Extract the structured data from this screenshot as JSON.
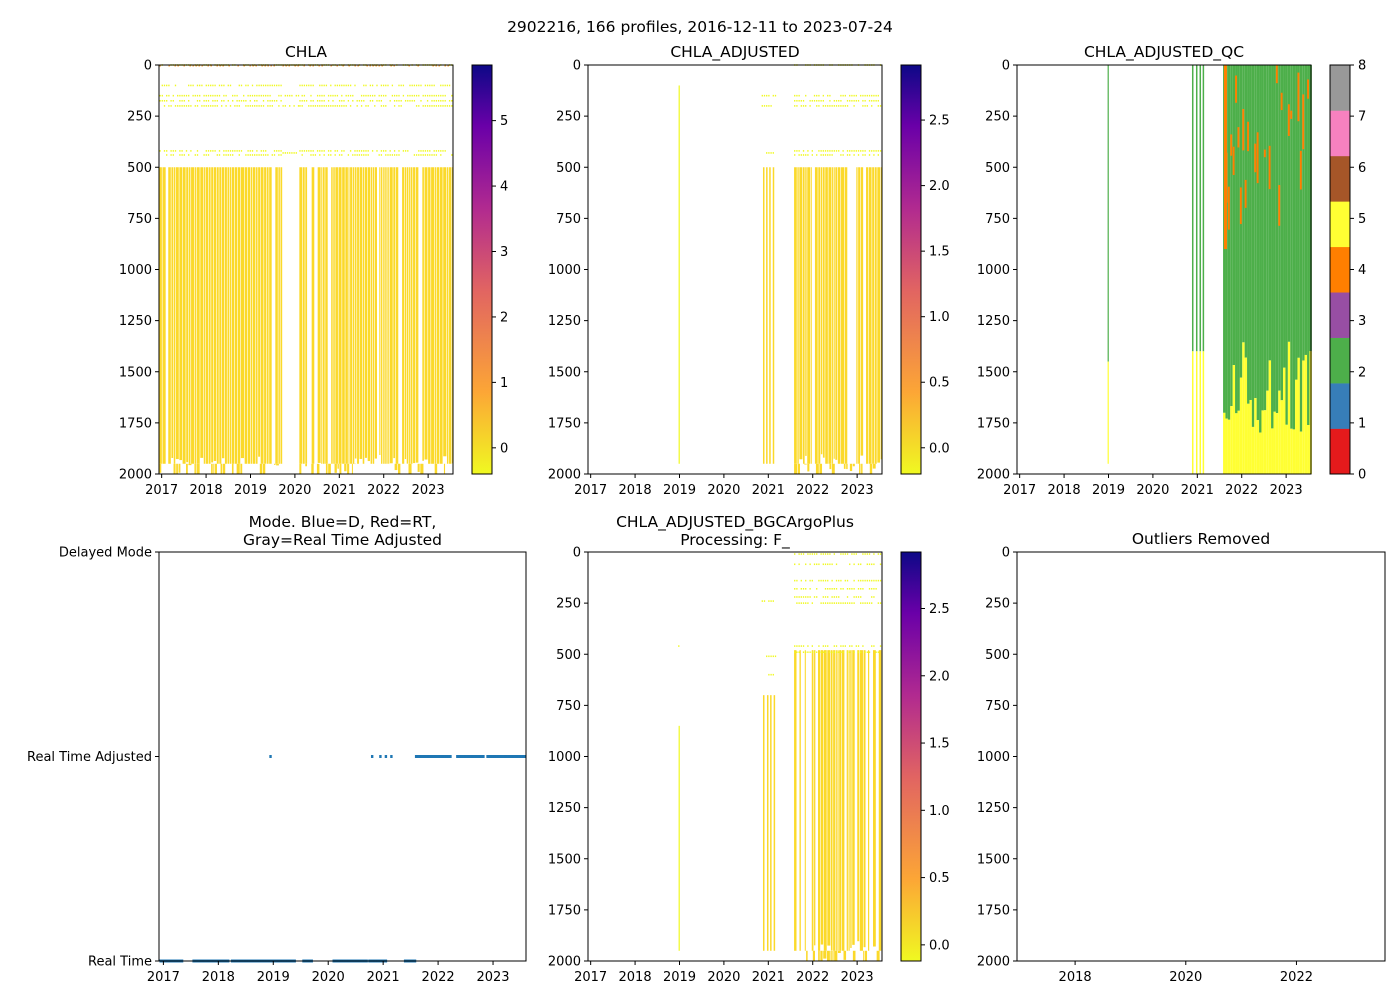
{
  "figure": {
    "title": "2902216, 166 profiles, 2016-12-11 to 2023-07-24"
  },
  "colors": {
    "chla_fill": "#fbd92a",
    "chla_bright": "#f0f921",
    "dots": "#1f77b4",
    "colormap_plasma": [
      "#f0f921",
      "#fca636",
      "#e16462",
      "#b12a90",
      "#6a00a8",
      "#0d0887"
    ],
    "qc_colors": [
      "#e41a1c",
      "#377eb8",
      "#4daf4a",
      "#984ea3",
      "#ff7f00",
      "#ffff33",
      "#a65628",
      "#f781bf",
      "#999999"
    ]
  },
  "chart_data": [
    {
      "id": "chla",
      "type": "heatmap",
      "title": "CHLA",
      "ylim": [
        2000,
        0
      ],
      "yticks": [
        "0",
        "250",
        "500",
        "750",
        "1000",
        "1250",
        "1500",
        "1750",
        "2000"
      ],
      "xrange_years": [
        2016.94,
        2023.56
      ],
      "xticks": [
        "2017",
        "2018",
        "2019",
        "2020",
        "2021",
        "2022",
        "2023"
      ],
      "colorbar": {
        "range": [
          -0.4,
          5.85
        ],
        "ticks": [
          "0",
          "1",
          "2",
          "3",
          "4",
          "5"
        ],
        "tick_values": [
          0,
          1,
          2,
          3,
          4,
          5
        ]
      },
      "data_periods": [
        [
          2016.95,
          2019.72
        ],
        [
          2020.1,
          2023.55
        ]
      ],
      "deep_gaps": [
        [
          2019.72,
          2020.1
        ]
      ],
      "near_surface_rows_m": [
        0,
        100,
        150,
        175,
        200,
        420,
        440
      ],
      "deep_start_m": 500
    },
    {
      "id": "chla_adjusted",
      "type": "heatmap",
      "title": "CHLA_ADJUSTED",
      "ylim": [
        2000,
        0
      ],
      "yticks": [
        "0",
        "250",
        "500",
        "750",
        "1000",
        "1250",
        "1500",
        "1750",
        "2000"
      ],
      "xrange_years": [
        2016.94,
        2023.56
      ],
      "xticks": [
        "2017",
        "2018",
        "2019",
        "2020",
        "2021",
        "2022",
        "2023"
      ],
      "colorbar": {
        "range": [
          -0.2,
          2.92
        ],
        "ticks": [
          "0.0",
          "0.5",
          "1.0",
          "1.5",
          "2.0",
          "2.5"
        ],
        "tick_values": [
          0,
          0.5,
          1.0,
          1.5,
          2.0,
          2.5
        ]
      },
      "data_periods": [
        [
          2018.97,
          2019.0
        ],
        [
          2020.85,
          2021.15
        ],
        [
          2021.58,
          2023.55
        ]
      ]
    },
    {
      "id": "chla_adjusted_qc",
      "type": "heatmap",
      "title": "CHLA_ADJUSTED_QC",
      "ylim": [
        2000,
        0
      ],
      "yticks": [
        "0",
        "250",
        "500",
        "750",
        "1000",
        "1250",
        "1500",
        "1750",
        "2000"
      ],
      "xrange_years": [
        2016.94,
        2023.56
      ],
      "xticks": [
        "2017",
        "2018",
        "2019",
        "2020",
        "2021",
        "2022",
        "2023"
      ],
      "colorbar": {
        "range": [
          0,
          8
        ],
        "ticks": [
          "0",
          "1",
          "2",
          "3",
          "4",
          "5",
          "6",
          "7",
          "8"
        ],
        "tick_values": [
          0,
          1,
          2,
          3,
          4,
          5,
          6,
          7,
          8
        ]
      },
      "data_periods": [
        [
          2018.97,
          2019.0
        ],
        [
          2020.85,
          2021.15
        ],
        [
          2021.58,
          2023.55
        ]
      ]
    },
    {
      "id": "mode",
      "type": "scatter",
      "title_line1": "Mode. Blue=D, Red=RT,",
      "title_line2": "Gray=Real Time Adjusted",
      "xrange_years": [
        2016.92,
        2023.6
      ],
      "xticks": [
        "2017",
        "2018",
        "2019",
        "2020",
        "2021",
        "2022",
        "2023"
      ],
      "ylevels": [
        "Delayed Mode",
        "Real Time Adjusted",
        "Real Time"
      ],
      "ylevel_values": [
        2,
        1,
        0
      ],
      "real_time_ranges": [
        [
          2016.95,
          2017.35
        ],
        [
          2017.55,
          2018.2
        ],
        [
          2018.25,
          2019.4
        ],
        [
          2019.55,
          2019.7
        ],
        [
          2020.1,
          2020.7
        ],
        [
          2020.75,
          2021.05
        ],
        [
          2021.4,
          2021.6
        ]
      ],
      "real_time_adjusted_singles": [
        2018.95,
        2020.8,
        2020.95,
        2021.05,
        2021.15
      ],
      "real_time_adjusted_ranges": [
        [
          2021.6,
          2022.25
        ],
        [
          2022.35,
          2022.85
        ],
        [
          2022.9,
          2023.6
        ]
      ]
    },
    {
      "id": "bgcargoplus",
      "type": "heatmap",
      "title_line1": "CHLA_ADJUSTED_BGCArgoPlus",
      "title_line2": "Processing: F_",
      "ylim": [
        2000,
        0
      ],
      "yticks": [
        "0",
        "250",
        "500",
        "750",
        "1000",
        "1250",
        "1500",
        "1750",
        "2000"
      ],
      "xrange_years": [
        2016.94,
        2023.56
      ],
      "xticks": [
        "2017",
        "2018",
        "2019",
        "2020",
        "2021",
        "2022",
        "2023"
      ],
      "colorbar": {
        "range": [
          -0.12,
          2.92
        ],
        "ticks": [
          "0.0",
          "0.5",
          "1.0",
          "1.5",
          "2.0",
          "2.5"
        ],
        "tick_values": [
          0,
          0.5,
          1.0,
          1.5,
          2.0,
          2.5
        ]
      },
      "data_periods": [
        [
          2018.97,
          2019.0
        ],
        [
          2020.85,
          2021.15
        ],
        [
          2021.58,
          2023.55
        ]
      ]
    },
    {
      "id": "outliers",
      "type": "heatmap",
      "title": "Outliers Removed",
      "ylim": [
        2000,
        0
      ],
      "yticks": [
        "0",
        "250",
        "500",
        "750",
        "1000",
        "1250",
        "1500",
        "1750",
        "2000"
      ],
      "xrange_years": [
        2016.95,
        2023.6
      ],
      "xticks": [
        "2018",
        "2020",
        "2022"
      ],
      "xtick_values": [
        2018,
        2020,
        2022
      ]
    }
  ]
}
